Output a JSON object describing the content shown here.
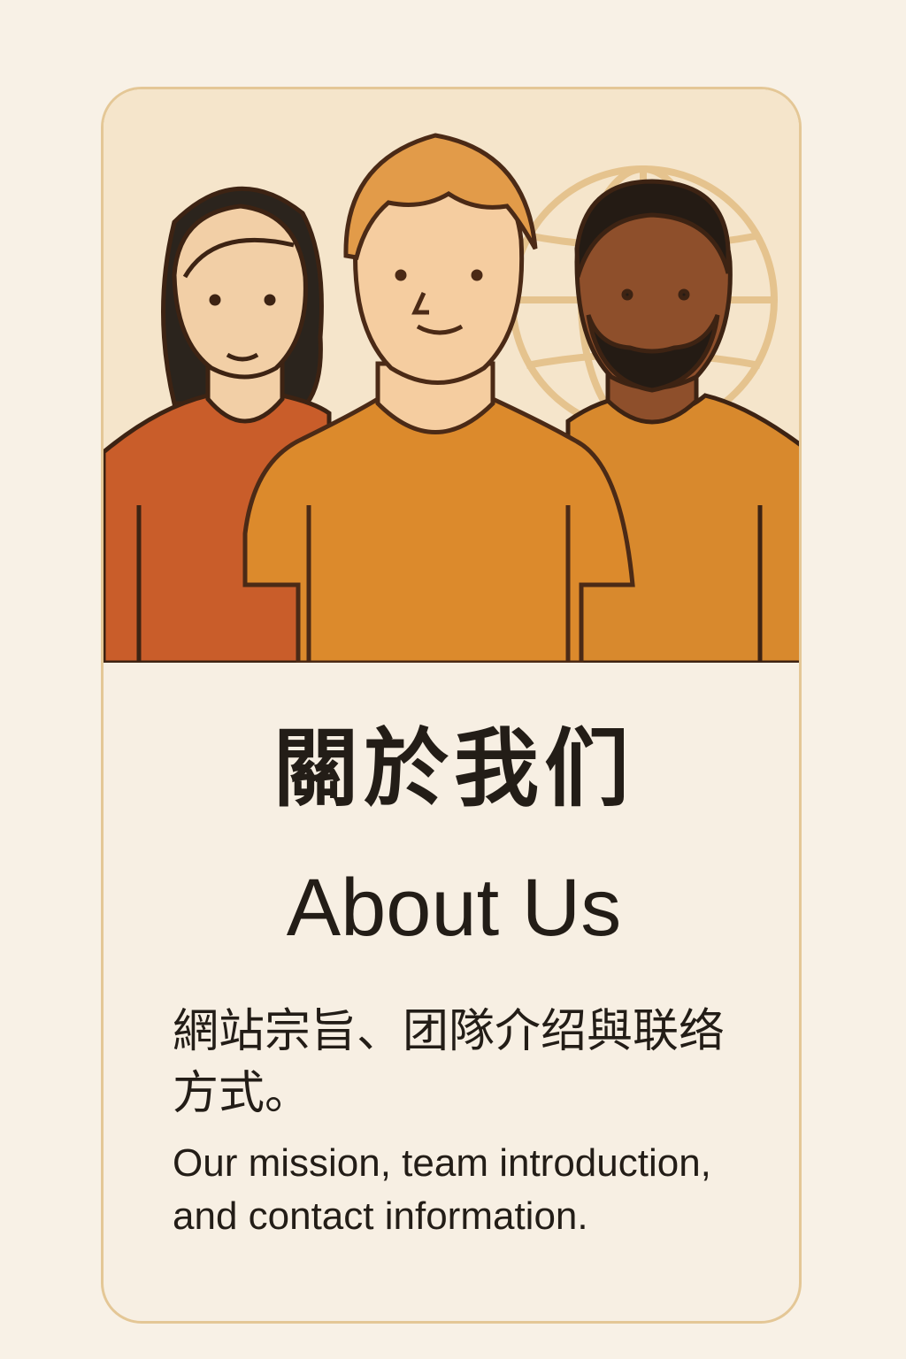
{
  "card": {
    "title_zh": "關於我们",
    "title_en": "About Us",
    "description_zh": "網站宗旨、团隊介绍與联络方式。",
    "description_en": "Our mission, team introduction, and contact information."
  },
  "illustration": {
    "subject": "three people in front of a globe",
    "icons": [
      "globe-icon",
      "person-icon",
      "person-icon",
      "person-icon"
    ]
  },
  "colors": {
    "page_background": "#f8f1e6",
    "card_background": "#f7efe3",
    "card_border": "#e4c796",
    "hero_background": "#f5e5cb",
    "text": "#231d17",
    "accent_orange": "#dc8a2c",
    "accent_red": "#c95d2a",
    "outline": "#4b2a16"
  }
}
